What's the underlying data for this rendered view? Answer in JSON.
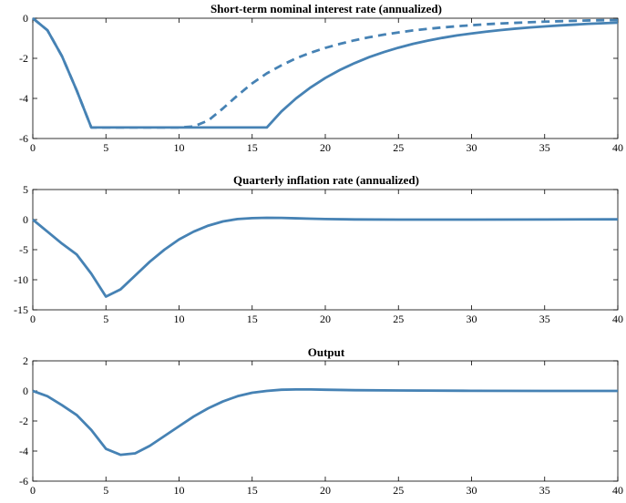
{
  "chart_data": [
    {
      "type": "line",
      "title": "Short-term nominal interest rate (annualized)",
      "xlim": [
        0,
        40
      ],
      "ylim": [
        -6,
        0
      ],
      "xticks": [
        0,
        5,
        10,
        15,
        20,
        25,
        30,
        35,
        40
      ],
      "yticks": [
        -6,
        -4,
        -2,
        0
      ],
      "xtick_labels": [
        "0",
        "5",
        "10",
        "15",
        "20",
        "25",
        "30",
        "35",
        "40"
      ],
      "ytick_labels": [
        "-6",
        "-4",
        "-2",
        "0"
      ],
      "grid": false,
      "color": "#4682B4",
      "series": [
        {
          "style": "solid",
          "x": [
            0,
            1,
            2,
            3,
            4,
            5,
            6,
            7,
            8,
            9,
            10,
            11,
            12,
            13,
            14,
            15,
            16,
            17,
            18,
            19,
            20,
            21,
            22,
            23,
            24,
            25,
            26,
            27,
            28,
            29,
            30,
            31,
            32,
            33,
            34,
            35,
            36,
            37,
            38,
            39,
            40
          ],
          "y": [
            0,
            -0.6,
            -1.9,
            -3.6,
            -5.45,
            -5.45,
            -5.45,
            -5.45,
            -5.45,
            -5.45,
            -5.45,
            -5.45,
            -5.45,
            -5.45,
            -5.45,
            -5.45,
            -5.45,
            -4.65,
            -4.0,
            -3.45,
            -2.98,
            -2.58,
            -2.24,
            -1.94,
            -1.69,
            -1.47,
            -1.28,
            -1.12,
            -0.98,
            -0.86,
            -0.76,
            -0.67,
            -0.59,
            -0.52,
            -0.46,
            -0.41,
            -0.36,
            -0.32,
            -0.28,
            -0.25,
            -0.22
          ]
        },
        {
          "style": "dashed",
          "x": [
            0,
            1,
            2,
            3,
            4,
            5,
            6,
            7,
            8,
            9,
            10,
            11,
            12,
            13,
            14,
            15,
            16,
            17,
            18,
            19,
            20,
            21,
            22,
            23,
            24,
            25,
            26,
            27,
            28,
            29,
            30,
            31,
            32,
            33,
            34,
            35,
            36,
            37,
            38,
            39,
            40
          ],
          "y": [
            0,
            -0.6,
            -1.9,
            -3.6,
            -5.45,
            -5.45,
            -5.45,
            -5.45,
            -5.45,
            -5.45,
            -5.45,
            -5.4,
            -5.1,
            -4.5,
            -3.85,
            -3.25,
            -2.75,
            -2.35,
            -2.0,
            -1.72,
            -1.48,
            -1.28,
            -1.1,
            -0.95,
            -0.82,
            -0.71,
            -0.61,
            -0.53,
            -0.46,
            -0.4,
            -0.35,
            -0.3,
            -0.26,
            -0.23,
            -0.2,
            -0.17,
            -0.15,
            -0.13,
            -0.11,
            -0.1,
            -0.09
          ]
        }
      ]
    },
    {
      "type": "line",
      "title": "Quarterly inflation rate (annualized)",
      "xlim": [
        0,
        40
      ],
      "ylim": [
        -15,
        5
      ],
      "xticks": [
        0,
        5,
        10,
        15,
        20,
        25,
        30,
        35,
        40
      ],
      "yticks": [
        -15,
        -10,
        -5,
        0,
        5
      ],
      "xtick_labels": [
        "0",
        "5",
        "10",
        "15",
        "20",
        "25",
        "30",
        "35",
        "40"
      ],
      "ytick_labels": [
        "-15",
        "-10",
        "-5",
        "0",
        "5"
      ],
      "grid": false,
      "color": "#4682B4",
      "series": [
        {
          "style": "solid",
          "x": [
            0,
            1,
            2,
            3,
            4,
            5,
            6,
            7,
            8,
            9,
            10,
            11,
            12,
            13,
            14,
            15,
            16,
            17,
            18,
            19,
            20,
            22,
            25,
            30,
            35,
            40
          ],
          "y": [
            0,
            -2.0,
            -4.0,
            -5.8,
            -9.0,
            -12.8,
            -11.6,
            -9.3,
            -7.0,
            -5.0,
            -3.3,
            -2.0,
            -1.0,
            -0.3,
            0.1,
            0.25,
            0.3,
            0.28,
            0.22,
            0.15,
            0.1,
            0.03,
            0,
            0,
            0.02,
            0.05
          ]
        }
      ]
    },
    {
      "type": "line",
      "title": "Output",
      "xlim": [
        0,
        40
      ],
      "ylim": [
        -6,
        2
      ],
      "xticks": [
        0,
        5,
        10,
        15,
        20,
        25,
        30,
        35,
        40
      ],
      "yticks": [
        -6,
        -4,
        -2,
        0,
        2
      ],
      "xtick_labels": [
        "0",
        "5",
        "10",
        "15",
        "20",
        "25",
        "30",
        "35",
        "40"
      ],
      "ytick_labels": [
        "-6",
        "-4",
        "-2",
        "0",
        "2"
      ],
      "grid": false,
      "color": "#4682B4",
      "series": [
        {
          "style": "solid",
          "x": [
            0,
            1,
            2,
            3,
            4,
            5,
            6,
            7,
            8,
            9,
            10,
            11,
            12,
            13,
            14,
            15,
            16,
            17,
            18,
            19,
            20,
            22,
            25,
            30,
            35,
            40
          ],
          "y": [
            0,
            -0.35,
            -0.95,
            -1.6,
            -2.6,
            -3.85,
            -4.25,
            -4.15,
            -3.65,
            -3.0,
            -2.35,
            -1.7,
            -1.15,
            -0.7,
            -0.35,
            -0.12,
            0,
            0.08,
            0.1,
            0.1,
            0.08,
            0.05,
            0.03,
            0.01,
            0,
            0
          ]
        }
      ]
    }
  ]
}
